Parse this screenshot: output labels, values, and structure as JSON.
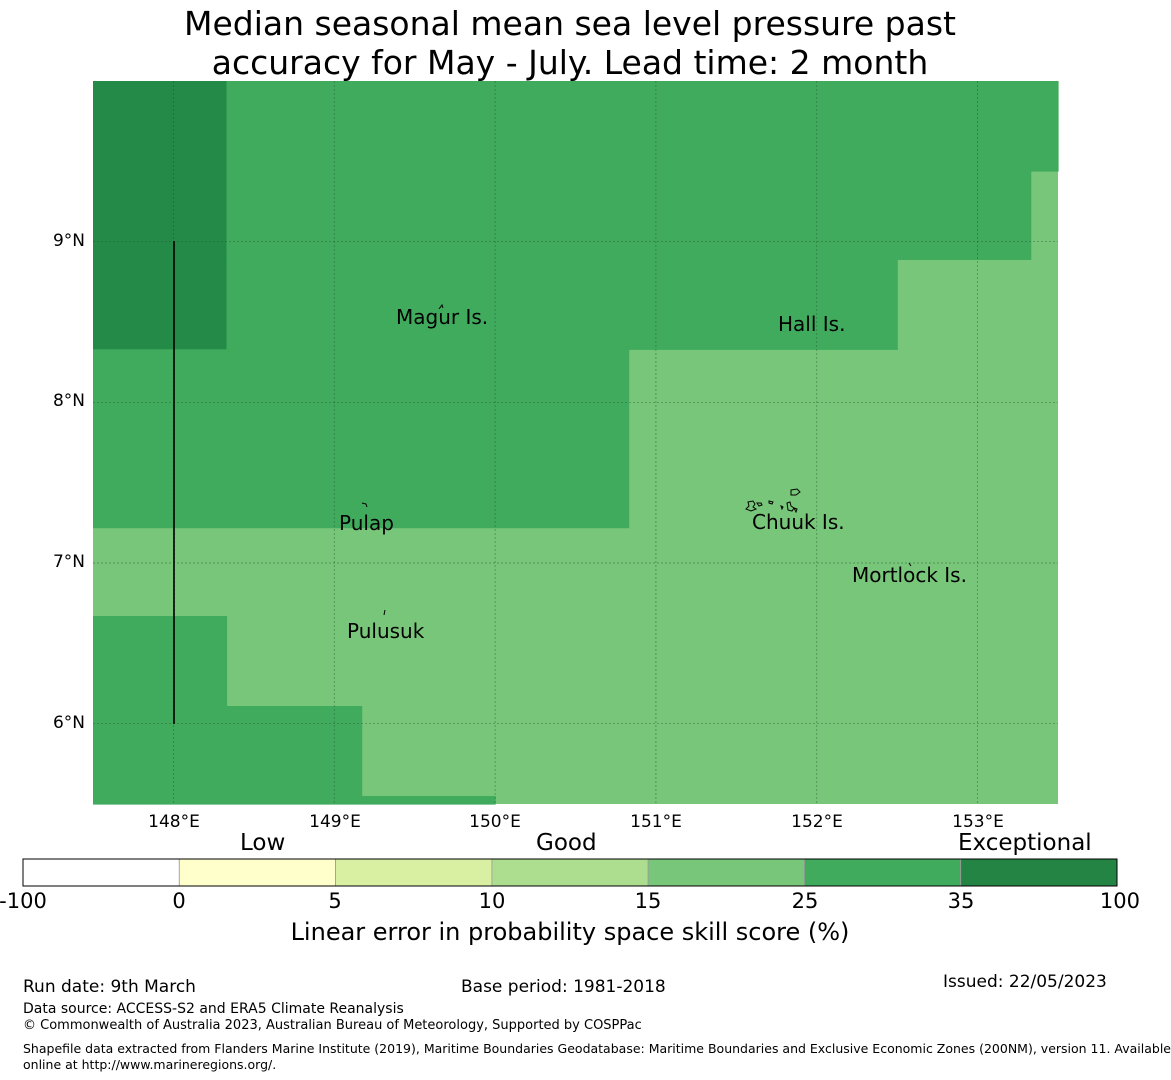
{
  "title": {
    "line1": "Median seasonal mean sea level pressure past",
    "line2": "accuracy for May - July. Lead time: 2 month"
  },
  "map": {
    "lon_range": [
      147.5,
      153.5
    ],
    "lat_range": [
      5.5,
      10.0
    ],
    "lat_labels": [
      "9°N",
      "8°N",
      "7°N",
      "6°N"
    ],
    "lon_labels": [
      "148°E",
      "149°E",
      "150°E",
      "151°E",
      "152°E",
      "153°E"
    ],
    "places": [
      "Magur Is.",
      "Hall Is.",
      "Pulap",
      "Chuuk Is.",
      "Mortlock Is.",
      "Pulusuk"
    ],
    "category_colors": {
      "exceptional": "#238a48",
      "high": "#41ab5d",
      "mid": "#78c679"
    },
    "regions": [
      {
        "category": "exceptional",
        "lon": [
          147.5,
          148.33
        ],
        "lat": [
          8.33,
          10.0
        ]
      },
      {
        "category": "high",
        "lon": [
          148.33,
          153.5
        ],
        "lat": [
          9.44,
          10.0
        ]
      },
      {
        "category": "high",
        "lon": [
          148.33,
          153.33
        ],
        "lat": [
          8.89,
          9.44
        ]
      },
      {
        "category": "high",
        "lon": [
          148.33,
          152.5
        ],
        "lat": [
          8.33,
          8.89
        ]
      },
      {
        "category": "high",
        "lon": [
          147.5,
          150.83
        ],
        "lat": [
          7.22,
          8.33
        ]
      },
      {
        "category": "high",
        "lon": [
          147.5,
          148.33
        ],
        "lat": [
          6.11,
          6.67
        ]
      },
      {
        "category": "high",
        "lon": [
          147.5,
          149.17
        ],
        "lat": [
          5.5,
          6.11
        ]
      },
      {
        "category": "high",
        "lon": [
          149.17,
          150.0
        ],
        "lat": [
          5.5,
          5.55
        ]
      }
    ]
  },
  "legend": {
    "categories": [
      "Low",
      "Good",
      "Exceptional"
    ],
    "ticks": [
      "-100",
      "0",
      "5",
      "10",
      "15",
      "25",
      "35",
      "100"
    ],
    "colors": [
      "#ffffff",
      "#ffffcc",
      "#d9f0a3",
      "#addd8e",
      "#78c679",
      "#41ab5d",
      "#238443"
    ],
    "label": "Linear error in probability space skill score (%)"
  },
  "footer": {
    "run_date": "Run date: 9th March",
    "base_period": "Base period: 1981-2018",
    "issued": "Issued: 22/05/2023",
    "data_source": "Data source: ACCESS-S2 and ERA5 Climate Reanalysis",
    "copyright": "© Commonwealth of Australia 2023, Australian Bureau of Meteorology, Supported by COSPPac",
    "shapefile_line1": "Shapefile data extracted from Flanders Marine Institute (2019), Maritime Boundaries Geodatabase: Maritime Boundaries and Exclusive Economic Zones (200NM), version 11. Available",
    "shapefile_line2": "online at http://www.marineregions.org/."
  }
}
